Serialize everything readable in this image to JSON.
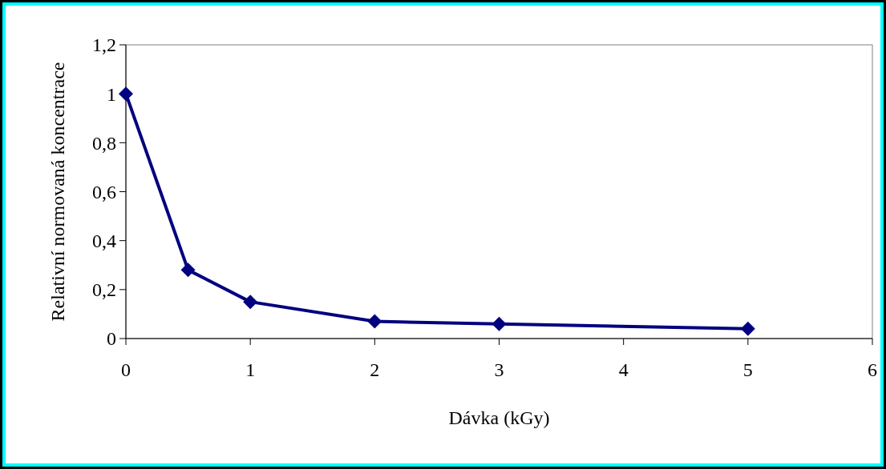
{
  "chart_data": {
    "type": "line",
    "xlabel": "Dávka (kGy)",
    "ylabel": "Relativní normovaná koncentrace",
    "x": [
      0,
      0.5,
      1,
      2,
      3,
      5
    ],
    "series": [
      {
        "color": "#000080",
        "values": [
          1,
          0.28,
          0.15,
          0.07,
          0.06,
          0.04
        ]
      }
    ],
    "xlim": [
      0,
      6
    ],
    "xticks": [
      0,
      1,
      2,
      3,
      4,
      5,
      6
    ],
    "ylim": [
      0,
      1.2
    ],
    "yticks": [
      0,
      {
        "value": 0.2,
        "label": "0,2"
      },
      {
        "value": 0.4,
        "label": "0,4"
      },
      {
        "value": 0.6,
        "label": "0,6"
      },
      {
        "value": 0.8,
        "label": "0,8"
      },
      1,
      {
        "value": 1.2,
        "label": "1,2"
      }
    ],
    "grid": false,
    "marker": "diamond",
    "line_style": "solid"
  }
}
